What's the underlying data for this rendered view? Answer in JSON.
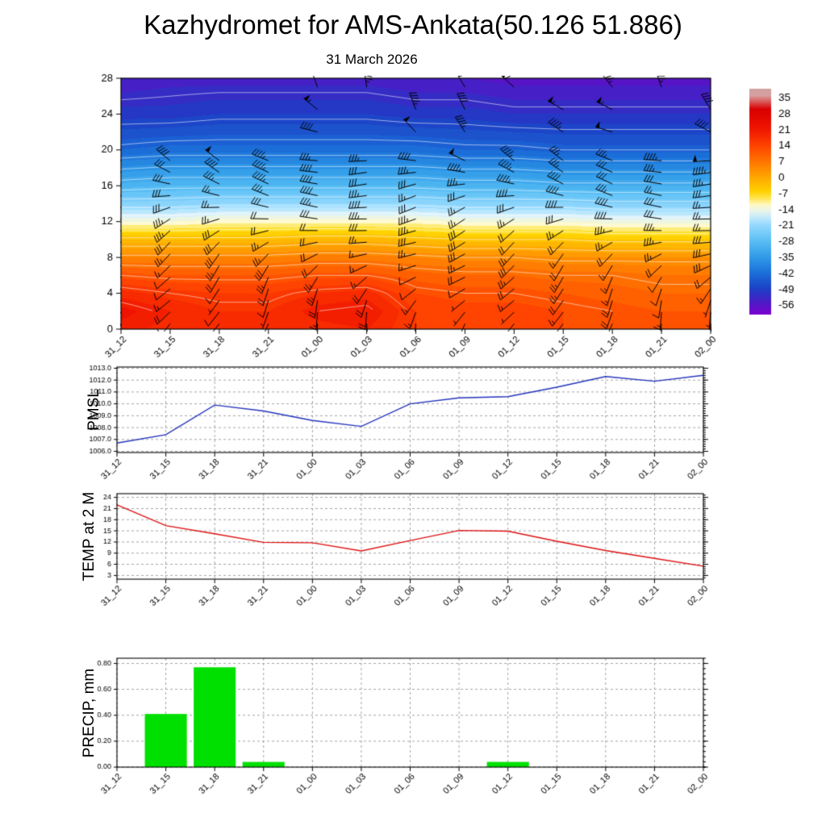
{
  "page": {
    "title": "Kazhydromet for AMS-Ankata(50.126 51.886)"
  },
  "time_labels": [
    "31_12",
    "31_15",
    "31_18",
    "31_21",
    "01_00",
    "01_03",
    "01_06",
    "01_09",
    "01_12",
    "01_15",
    "01_18",
    "01_21",
    "02_00"
  ],
  "chart_data": [
    {
      "id": "cross_section",
      "type": "heatmap",
      "title": "31 March 2026",
      "ylim": [
        0,
        28
      ],
      "yticks": [
        0,
        4,
        8,
        12,
        16,
        20,
        24,
        28
      ],
      "x_categories": [
        "31_12",
        "31_15",
        "31_18",
        "31_21",
        "01_00",
        "01_03",
        "01_06",
        "01_09",
        "01_12",
        "01_15",
        "01_18",
        "01_21",
        "02_00"
      ],
      "heights": [
        0,
        2,
        4,
        6,
        8,
        10,
        12,
        14,
        16,
        20,
        24,
        28
      ],
      "grid": [
        [
          20,
          18,
          17,
          17,
          18,
          19,
          15,
          14,
          14,
          13,
          12,
          11,
          11
        ],
        [
          22,
          19,
          17,
          17,
          20,
          21,
          15,
          14,
          14,
          13,
          12,
          11,
          11
        ],
        [
          18,
          16,
          15,
          15,
          17,
          18,
          13,
          12,
          12,
          11,
          10,
          9,
          9
        ],
        [
          12,
          11,
          11,
          11,
          12,
          12,
          10,
          9,
          9,
          8,
          8,
          7,
          7
        ],
        [
          5,
          5,
          5,
          5,
          6,
          6,
          5,
          4,
          4,
          3,
          3,
          3,
          3
        ],
        [
          -3,
          -3,
          -3,
          -3,
          -2,
          -2,
          -3,
          -4,
          -4,
          -4,
          -5,
          -5,
          -5
        ],
        [
          -13,
          -13,
          -12,
          -12,
          -12,
          -12,
          -12,
          -13,
          -13,
          -13,
          -14,
          -14,
          -14
        ],
        [
          -22,
          -22,
          -21,
          -21,
          -21,
          -21,
          -21,
          -22,
          -22,
          -22,
          -23,
          -23,
          -23
        ],
        [
          -30,
          -29,
          -29,
          -29,
          -29,
          -29,
          -29,
          -30,
          -30,
          -31,
          -31,
          -31,
          -31
        ],
        [
          -43,
          -42,
          -42,
          -42,
          -42,
          -42,
          -42,
          -43,
          -43,
          -44,
          -44,
          -44,
          -44
        ],
        [
          -50,
          -50,
          -49,
          -49,
          -49,
          -49,
          -50,
          -50,
          -51,
          -51,
          -51,
          -51,
          -51
        ],
        [
          -55,
          -54,
          -54,
          -54,
          -54,
          -54,
          -55,
          -55,
          -56,
          -56,
          -56,
          -56,
          -56
        ]
      ],
      "colorbar_ticks": [
        35,
        28,
        21,
        14,
        7,
        0,
        -7,
        -14,
        -21,
        -28,
        -35,
        -42,
        -49,
        -56
      ],
      "colormap_stops": [
        [
          -60,
          "#7a00d0"
        ],
        [
          -56,
          "#5714c6"
        ],
        [
          -49,
          "#1c3ec5"
        ],
        [
          -42,
          "#1b6ed8"
        ],
        [
          -35,
          "#2f9ae8"
        ],
        [
          -28,
          "#58bdf4"
        ],
        [
          -20,
          "#9adcff"
        ],
        [
          -16,
          "#dbf2fb"
        ],
        [
          -12,
          "#fff9c8"
        ],
        [
          -7,
          "#ffd800"
        ],
        [
          0,
          "#ffa800"
        ],
        [
          7,
          "#ff7600"
        ],
        [
          14,
          "#ff4300"
        ],
        [
          22,
          "#ef1200"
        ],
        [
          30,
          "#d90000"
        ],
        [
          36,
          "#d89f9f"
        ],
        [
          40,
          "#cf9f9f"
        ]
      ],
      "contour_interval": 4,
      "wind_barbs": true
    },
    {
      "id": "pmsl",
      "type": "line",
      "label": "PMSL",
      "color": "#2233bb",
      "ylim": [
        1005.9,
        1013.1
      ],
      "yticks": [
        1006,
        1007,
        1008,
        1009,
        1010,
        1011,
        1012,
        1013
      ],
      "ytick_decimals": 1,
      "values": [
        1006.7,
        1007.4,
        1009.9,
        1009.4,
        1008.6,
        1008.1,
        1010.0,
        1010.5,
        1010.6,
        1011.4,
        1012.3,
        1011.9,
        1012.4
      ]
    },
    {
      "id": "temp2m",
      "type": "line",
      "label": "TEMP at 2 M",
      "color": "#dd1111",
      "ylim": [
        2,
        25
      ],
      "yticks": [
        3,
        6,
        9,
        12,
        15,
        18,
        21,
        24
      ],
      "ytick_decimals": 0,
      "values": [
        22.0,
        16.4,
        14.2,
        11.9,
        11.8,
        9.6,
        12.4,
        15.1,
        14.9,
        12.2,
        9.7,
        7.6,
        5.5
      ]
    },
    {
      "id": "precip",
      "type": "bar",
      "label": "PRECIP, mm",
      "color": "#00e000",
      "ylim": [
        0,
        0.84
      ],
      "yticks": [
        0,
        0.2,
        0.4,
        0.6,
        0.8
      ],
      "ytick_decimals": 2,
      "values": [
        0,
        0.41,
        0.77,
        0.04,
        0,
        0,
        0,
        0,
        0.04,
        0,
        0,
        0,
        0
      ]
    }
  ]
}
